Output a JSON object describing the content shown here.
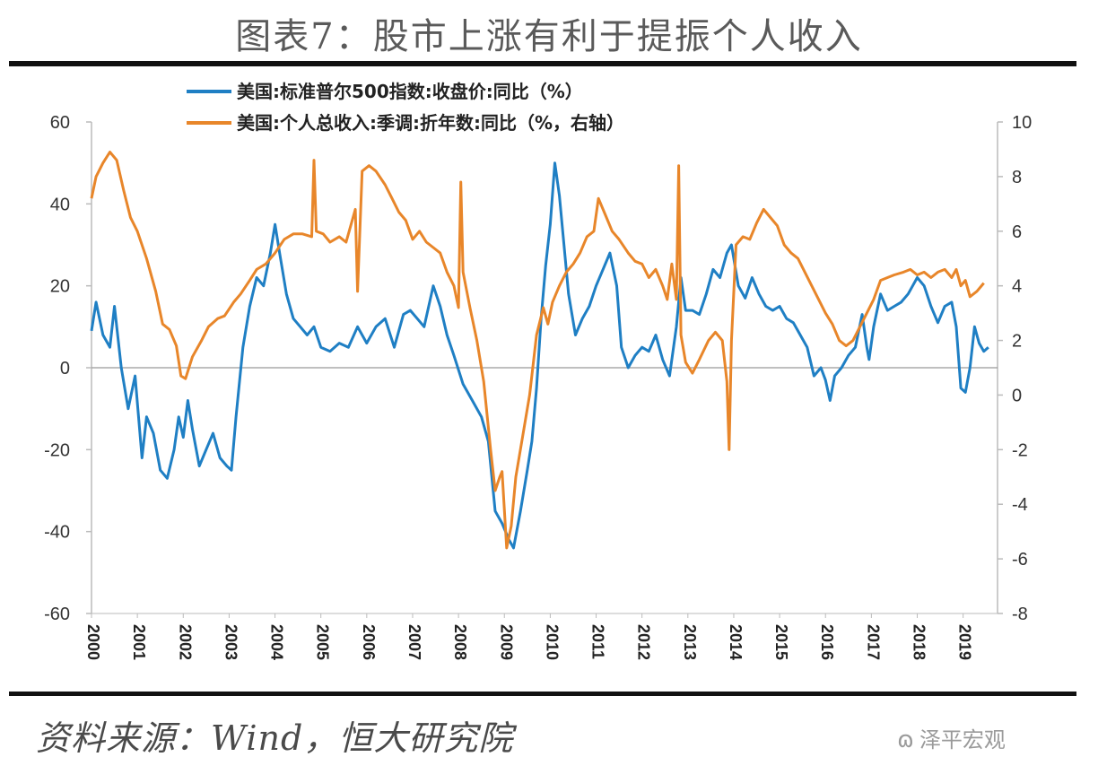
{
  "title": "图表7：股市上涨有利于提振个人收入",
  "source": "资料来源：Wind，恒大研究院",
  "watermark": "泽平宏观",
  "colors": {
    "blue": "#1f7fc4",
    "orange": "#e8862a"
  },
  "chart_data": {
    "type": "line",
    "x_labels": [
      "2000",
      "2001",
      "2002",
      "2003",
      "2004",
      "2005",
      "2006",
      "2007",
      "2008",
      "2009",
      "2010",
      "2011",
      "2012",
      "2013",
      "2014",
      "2015",
      "2016",
      "2017",
      "2018",
      "2019"
    ],
    "left_axis": {
      "min": -60,
      "max": 60,
      "step": 20,
      "ticks": [
        "60",
        "40",
        "20",
        "0",
        "-20",
        "-40",
        "-60"
      ]
    },
    "right_axis": {
      "min": -8,
      "max": 10,
      "step": 2,
      "ticks": [
        "10",
        "8",
        "6",
        "4",
        "2",
        "0",
        "-2",
        "-4",
        "-6",
        "-8"
      ]
    },
    "series": [
      {
        "name": "美国:标准普尔500指数:收盘价:同比（%）",
        "axis": "left",
        "color": "#1f7fc4",
        "points": [
          [
            2000.0,
            9
          ],
          [
            2000.1,
            16
          ],
          [
            2000.25,
            8
          ],
          [
            2000.4,
            5
          ],
          [
            2000.5,
            15
          ],
          [
            2000.65,
            0
          ],
          [
            2000.8,
            -10
          ],
          [
            2000.95,
            -2
          ],
          [
            2001.1,
            -22
          ],
          [
            2001.2,
            -12
          ],
          [
            2001.35,
            -16
          ],
          [
            2001.5,
            -25
          ],
          [
            2001.65,
            -27
          ],
          [
            2001.8,
            -20
          ],
          [
            2001.9,
            -12
          ],
          [
            2002.0,
            -17
          ],
          [
            2002.1,
            -8
          ],
          [
            2002.2,
            -15
          ],
          [
            2002.35,
            -24
          ],
          [
            2002.5,
            -20
          ],
          [
            2002.65,
            -16
          ],
          [
            2002.8,
            -22
          ],
          [
            2002.95,
            -24
          ],
          [
            2003.05,
            -25
          ],
          [
            2003.15,
            -12
          ],
          [
            2003.3,
            5
          ],
          [
            2003.45,
            15
          ],
          [
            2003.6,
            22
          ],
          [
            2003.75,
            20
          ],
          [
            2003.9,
            28
          ],
          [
            2004.0,
            35
          ],
          [
            2004.1,
            28
          ],
          [
            2004.25,
            18
          ],
          [
            2004.4,
            12
          ],
          [
            2004.55,
            10
          ],
          [
            2004.7,
            8
          ],
          [
            2004.85,
            10
          ],
          [
            2005.0,
            5
          ],
          [
            2005.2,
            4
          ],
          [
            2005.4,
            6
          ],
          [
            2005.6,
            5
          ],
          [
            2005.8,
            10
          ],
          [
            2006.0,
            6
          ],
          [
            2006.2,
            10
          ],
          [
            2006.4,
            12
          ],
          [
            2006.6,
            5
          ],
          [
            2006.8,
            13
          ],
          [
            2006.95,
            14
          ],
          [
            2007.1,
            12
          ],
          [
            2007.25,
            10
          ],
          [
            2007.45,
            20
          ],
          [
            2007.6,
            15
          ],
          [
            2007.75,
            8
          ],
          [
            2007.9,
            3
          ],
          [
            2008.1,
            -4
          ],
          [
            2008.3,
            -8
          ],
          [
            2008.5,
            -12
          ],
          [
            2008.65,
            -18
          ],
          [
            2008.8,
            -35
          ],
          [
            2008.95,
            -38
          ],
          [
            2009.1,
            -42
          ],
          [
            2009.2,
            -44
          ],
          [
            2009.35,
            -35
          ],
          [
            2009.5,
            -25
          ],
          [
            2009.6,
            -18
          ],
          [
            2009.7,
            -5
          ],
          [
            2009.8,
            12
          ],
          [
            2009.9,
            25
          ],
          [
            2010.0,
            35
          ],
          [
            2010.1,
            50
          ],
          [
            2010.2,
            42
          ],
          [
            2010.3,
            30
          ],
          [
            2010.4,
            18
          ],
          [
            2010.55,
            8
          ],
          [
            2010.7,
            12
          ],
          [
            2010.85,
            15
          ],
          [
            2011.0,
            20
          ],
          [
            2011.15,
            24
          ],
          [
            2011.3,
            28
          ],
          [
            2011.45,
            20
          ],
          [
            2011.55,
            5
          ],
          [
            2011.7,
            0
          ],
          [
            2011.85,
            3
          ],
          [
            2012.0,
            5
          ],
          [
            2012.15,
            4
          ],
          [
            2012.3,
            8
          ],
          [
            2012.45,
            2
          ],
          [
            2012.6,
            -2
          ],
          [
            2012.75,
            10
          ],
          [
            2012.85,
            22
          ],
          [
            2012.95,
            14
          ],
          [
            2013.1,
            14
          ],
          [
            2013.25,
            13
          ],
          [
            2013.4,
            18
          ],
          [
            2013.55,
            24
          ],
          [
            2013.7,
            22
          ],
          [
            2013.85,
            28
          ],
          [
            2013.95,
            30
          ],
          [
            2014.1,
            20
          ],
          [
            2014.25,
            17
          ],
          [
            2014.4,
            22
          ],
          [
            2014.55,
            18
          ],
          [
            2014.7,
            15
          ],
          [
            2014.85,
            14
          ],
          [
            2015.0,
            15
          ],
          [
            2015.15,
            12
          ],
          [
            2015.3,
            11
          ],
          [
            2015.45,
            8
          ],
          [
            2015.6,
            5
          ],
          [
            2015.75,
            -2
          ],
          [
            2015.9,
            0
          ],
          [
            2016.0,
            -3
          ],
          [
            2016.1,
            -8
          ],
          [
            2016.2,
            -2
          ],
          [
            2016.35,
            0
          ],
          [
            2016.5,
            3
          ],
          [
            2016.65,
            5
          ],
          [
            2016.8,
            13
          ],
          [
            2016.9,
            5
          ],
          [
            2016.95,
            2
          ],
          [
            2017.05,
            10
          ],
          [
            2017.2,
            18
          ],
          [
            2017.35,
            14
          ],
          [
            2017.5,
            15
          ],
          [
            2017.65,
            16
          ],
          [
            2017.8,
            18
          ],
          [
            2017.9,
            20
          ],
          [
            2018.0,
            22
          ],
          [
            2018.15,
            20
          ],
          [
            2018.3,
            15
          ],
          [
            2018.45,
            11
          ],
          [
            2018.6,
            15
          ],
          [
            2018.75,
            16
          ],
          [
            2018.85,
            10
          ],
          [
            2018.95,
            -5
          ],
          [
            2019.05,
            -6
          ],
          [
            2019.15,
            0
          ],
          [
            2019.25,
            10
          ],
          [
            2019.35,
            6
          ],
          [
            2019.45,
            4
          ],
          [
            2019.55,
            5
          ]
        ]
      },
      {
        "name": "美国:个人总收入:季调:折年数:同比（%，右轴）",
        "axis": "right",
        "color": "#e8862a",
        "points": [
          [
            2000.0,
            7.2
          ],
          [
            2000.1,
            8.0
          ],
          [
            2000.25,
            8.5
          ],
          [
            2000.4,
            8.9
          ],
          [
            2000.55,
            8.6
          ],
          [
            2000.7,
            7.5
          ],
          [
            2000.85,
            6.5
          ],
          [
            2001.0,
            6.0
          ],
          [
            2001.2,
            5.0
          ],
          [
            2001.4,
            3.8
          ],
          [
            2001.55,
            2.6
          ],
          [
            2001.7,
            2.4
          ],
          [
            2001.85,
            1.8
          ],
          [
            2001.95,
            0.7
          ],
          [
            2002.05,
            0.6
          ],
          [
            2002.2,
            1.4
          ],
          [
            2002.4,
            2.0
          ],
          [
            2002.55,
            2.5
          ],
          [
            2002.75,
            2.8
          ],
          [
            2002.9,
            2.9
          ],
          [
            2003.1,
            3.4
          ],
          [
            2003.25,
            3.7
          ],
          [
            2003.45,
            4.2
          ],
          [
            2003.6,
            4.6
          ],
          [
            2003.8,
            4.8
          ],
          [
            2004.0,
            5.2
          ],
          [
            2004.2,
            5.7
          ],
          [
            2004.4,
            5.9
          ],
          [
            2004.6,
            5.9
          ],
          [
            2004.8,
            5.8
          ],
          [
            2004.85,
            8.6
          ],
          [
            2004.9,
            6.0
          ],
          [
            2005.05,
            5.9
          ],
          [
            2005.2,
            5.6
          ],
          [
            2005.4,
            5.8
          ],
          [
            2005.55,
            5.6
          ],
          [
            2005.75,
            6.8
          ],
          [
            2005.8,
            3.8
          ],
          [
            2005.9,
            8.2
          ],
          [
            2006.05,
            8.4
          ],
          [
            2006.2,
            8.2
          ],
          [
            2006.4,
            7.7
          ],
          [
            2006.55,
            7.2
          ],
          [
            2006.7,
            6.7
          ],
          [
            2006.85,
            6.4
          ],
          [
            2007.0,
            5.7
          ],
          [
            2007.15,
            6.0
          ],
          [
            2007.3,
            5.6
          ],
          [
            2007.45,
            5.4
          ],
          [
            2007.6,
            5.2
          ],
          [
            2007.75,
            4.5
          ],
          [
            2007.9,
            4.0
          ],
          [
            2008.0,
            3.2
          ],
          [
            2008.05,
            7.8
          ],
          [
            2008.1,
            4.5
          ],
          [
            2008.25,
            3.2
          ],
          [
            2008.4,
            2.0
          ],
          [
            2008.55,
            0.5
          ],
          [
            2008.7,
            -2.0
          ],
          [
            2008.8,
            -3.5
          ],
          [
            2008.9,
            -3.0
          ],
          [
            2008.95,
            -2.8
          ],
          [
            2009.05,
            -5.6
          ],
          [
            2009.15,
            -4.8
          ],
          [
            2009.25,
            -3.0
          ],
          [
            2009.4,
            -1.5
          ],
          [
            2009.55,
            0.0
          ],
          [
            2009.7,
            2.2
          ],
          [
            2009.85,
            3.2
          ],
          [
            2009.95,
            2.6
          ],
          [
            2010.05,
            3.4
          ],
          [
            2010.2,
            4.0
          ],
          [
            2010.35,
            4.5
          ],
          [
            2010.5,
            4.8
          ],
          [
            2010.65,
            5.2
          ],
          [
            2010.8,
            5.8
          ],
          [
            2010.95,
            6.0
          ],
          [
            2011.05,
            7.2
          ],
          [
            2011.2,
            6.6
          ],
          [
            2011.35,
            6.0
          ],
          [
            2011.5,
            5.7
          ],
          [
            2011.7,
            5.2
          ],
          [
            2011.85,
            4.9
          ],
          [
            2012.0,
            4.8
          ],
          [
            2012.15,
            4.3
          ],
          [
            2012.3,
            4.6
          ],
          [
            2012.45,
            4.0
          ],
          [
            2012.55,
            3.5
          ],
          [
            2012.65,
            4.8
          ],
          [
            2012.75,
            3.5
          ],
          [
            2012.8,
            8.4
          ],
          [
            2012.85,
            2.2
          ],
          [
            2012.95,
            1.2
          ],
          [
            2013.1,
            0.8
          ],
          [
            2013.25,
            1.3
          ],
          [
            2013.45,
            2.0
          ],
          [
            2013.6,
            2.3
          ],
          [
            2013.75,
            2.0
          ],
          [
            2013.85,
            0.5
          ],
          [
            2013.9,
            -2.0
          ],
          [
            2013.95,
            2.0
          ],
          [
            2014.05,
            5.5
          ],
          [
            2014.2,
            5.8
          ],
          [
            2014.35,
            5.7
          ],
          [
            2014.5,
            6.3
          ],
          [
            2014.65,
            6.8
          ],
          [
            2014.8,
            6.5
          ],
          [
            2014.95,
            6.2
          ],
          [
            2015.1,
            5.5
          ],
          [
            2015.25,
            5.2
          ],
          [
            2015.4,
            5.0
          ],
          [
            2015.55,
            4.5
          ],
          [
            2015.7,
            4.0
          ],
          [
            2015.85,
            3.5
          ],
          [
            2016.0,
            3.0
          ],
          [
            2016.15,
            2.6
          ],
          [
            2016.3,
            2.0
          ],
          [
            2016.45,
            1.8
          ],
          [
            2016.6,
            2.0
          ],
          [
            2016.75,
            2.5
          ],
          [
            2016.9,
            3.0
          ],
          [
            2017.05,
            3.5
          ],
          [
            2017.2,
            4.2
          ],
          [
            2017.35,
            4.3
          ],
          [
            2017.5,
            4.4
          ],
          [
            2017.7,
            4.5
          ],
          [
            2017.85,
            4.6
          ],
          [
            2018.0,
            4.4
          ],
          [
            2018.15,
            4.5
          ],
          [
            2018.3,
            4.3
          ],
          [
            2018.45,
            4.5
          ],
          [
            2018.6,
            4.6
          ],
          [
            2018.75,
            4.3
          ],
          [
            2018.85,
            4.6
          ],
          [
            2018.95,
            4.0
          ],
          [
            2019.05,
            4.2
          ],
          [
            2019.15,
            3.6
          ],
          [
            2019.3,
            3.8
          ],
          [
            2019.45,
            4.1
          ]
        ]
      }
    ]
  }
}
